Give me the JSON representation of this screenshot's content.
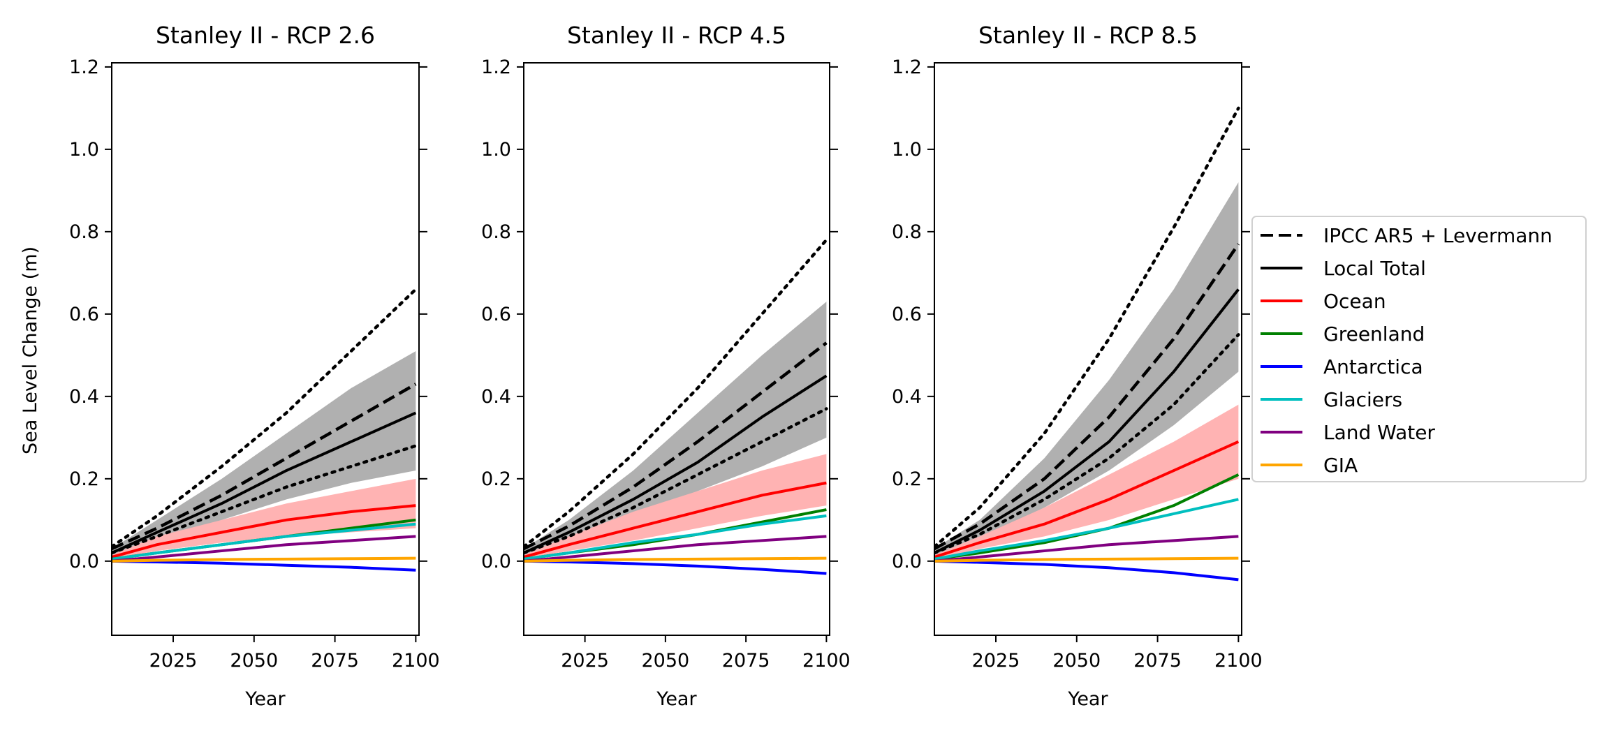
{
  "chart_data": [
    {
      "type": "line",
      "title": "Stanley II - RCP 2.6",
      "xlabel": "Year",
      "ylabel": "Sea Level Change (m)",
      "xlim": [
        2006,
        2101
      ],
      "ylim": [
        -0.18,
        1.21
      ],
      "xticks": [
        2025,
        2050,
        2075,
        2100
      ],
      "yticks": [
        0.0,
        0.2,
        0.4,
        0.6,
        0.8,
        1.0,
        1.2
      ],
      "x": [
        2006,
        2020,
        2040,
        2060,
        2080,
        2100
      ],
      "series": [
        {
          "name": "IPCC AR5 + Levermann",
          "style": "dashed",
          "color": "#000000",
          "values": [
            0.03,
            0.08,
            0.16,
            0.25,
            0.34,
            0.43
          ]
        },
        {
          "name": "Local Total",
          "style": "solid",
          "color": "#000000",
          "values": [
            0.02,
            0.07,
            0.14,
            0.22,
            0.29,
            0.36
          ]
        },
        {
          "name": "Ocean",
          "style": "solid",
          "color": "#ff0000",
          "values": [
            0.01,
            0.04,
            0.07,
            0.1,
            0.12,
            0.135
          ]
        },
        {
          "name": "Greenland",
          "style": "solid",
          "color": "#008000",
          "values": [
            0.005,
            0.02,
            0.04,
            0.06,
            0.08,
            0.1
          ]
        },
        {
          "name": "Antarctica",
          "style": "solid",
          "color": "#0000ff",
          "values": [
            0.0,
            -0.002,
            -0.005,
            -0.01,
            -0.015,
            -0.022
          ]
        },
        {
          "name": "Glaciers",
          "style": "solid",
          "color": "#00bfbf",
          "values": [
            0.005,
            0.02,
            0.04,
            0.06,
            0.075,
            0.09
          ]
        },
        {
          "name": "Land Water",
          "style": "solid",
          "color": "#800080",
          "values": [
            0.0,
            0.01,
            0.025,
            0.04,
            0.05,
            0.06
          ]
        },
        {
          "name": "GIA",
          "style": "solid",
          "color": "#ffa500",
          "values": [
            0.0,
            0.002,
            0.004,
            0.005,
            0.006,
            0.007
          ]
        },
        {
          "style": "dotted",
          "color": "#000000",
          "values": [
            0.035,
            0.11,
            0.23,
            0.36,
            0.51,
            0.66
          ]
        },
        {
          "style": "dotted",
          "color": "#000000",
          "values": [
            0.02,
            0.06,
            0.12,
            0.18,
            0.23,
            0.28
          ]
        }
      ],
      "bands": [
        {
          "color": "#b0b0b0",
          "lower": [
            0.015,
            0.05,
            0.1,
            0.15,
            0.19,
            0.22
          ],
          "upper": [
            0.03,
            0.1,
            0.2,
            0.31,
            0.42,
            0.51
          ]
        },
        {
          "color": "#ffb3b3",
          "lower": [
            0.005,
            0.025,
            0.045,
            0.06,
            0.07,
            0.08
          ],
          "upper": [
            0.015,
            0.06,
            0.1,
            0.14,
            0.17,
            0.2
          ]
        }
      ]
    },
    {
      "type": "line",
      "title": "Stanley II - RCP 4.5",
      "xlabel": "Year",
      "xlim": [
        2006,
        2101
      ],
      "ylim": [
        -0.18,
        1.21
      ],
      "xticks": [
        2025,
        2050,
        2075,
        2100
      ],
      "yticks": [
        0.0,
        0.2,
        0.4,
        0.6,
        0.8,
        1.0,
        1.2
      ],
      "x": [
        2006,
        2020,
        2040,
        2060,
        2080,
        2100
      ],
      "series": [
        {
          "name": "IPCC AR5 + Levermann",
          "style": "dashed",
          "color": "#000000",
          "values": [
            0.03,
            0.085,
            0.18,
            0.29,
            0.41,
            0.53
          ]
        },
        {
          "name": "Local Total",
          "style": "solid",
          "color": "#000000",
          "values": [
            0.02,
            0.07,
            0.15,
            0.24,
            0.35,
            0.45
          ]
        },
        {
          "name": "Ocean",
          "style": "solid",
          "color": "#ff0000",
          "values": [
            0.01,
            0.04,
            0.08,
            0.12,
            0.16,
            0.19
          ]
        },
        {
          "name": "Greenland",
          "style": "solid",
          "color": "#008000",
          "values": [
            0.005,
            0.02,
            0.04,
            0.065,
            0.095,
            0.125
          ]
        },
        {
          "name": "Antarctica",
          "style": "solid",
          "color": "#0000ff",
          "values": [
            0.0,
            -0.002,
            -0.006,
            -0.012,
            -0.02,
            -0.03
          ]
        },
        {
          "name": "Glaciers",
          "style": "solid",
          "color": "#00bfbf",
          "values": [
            0.005,
            0.02,
            0.045,
            0.065,
            0.09,
            0.11
          ]
        },
        {
          "name": "Land Water",
          "style": "solid",
          "color": "#800080",
          "values": [
            0.0,
            0.01,
            0.025,
            0.04,
            0.05,
            0.06
          ]
        },
        {
          "name": "GIA",
          "style": "solid",
          "color": "#ffa500",
          "values": [
            0.0,
            0.002,
            0.004,
            0.005,
            0.006,
            0.007
          ]
        },
        {
          "style": "dotted",
          "color": "#000000",
          "values": [
            0.035,
            0.12,
            0.26,
            0.42,
            0.6,
            0.78
          ]
        },
        {
          "style": "dotted",
          "color": "#000000",
          "values": [
            0.02,
            0.06,
            0.13,
            0.21,
            0.29,
            0.37
          ]
        }
      ],
      "bands": [
        {
          "color": "#b0b0b0",
          "lower": [
            0.015,
            0.05,
            0.11,
            0.17,
            0.23,
            0.3
          ],
          "upper": [
            0.03,
            0.1,
            0.22,
            0.36,
            0.5,
            0.63
          ]
        },
        {
          "color": "#ffb3b3",
          "lower": [
            0.005,
            0.025,
            0.05,
            0.08,
            0.11,
            0.135
          ],
          "upper": [
            0.015,
            0.06,
            0.12,
            0.17,
            0.22,
            0.26
          ]
        }
      ]
    },
    {
      "type": "line",
      "title": "Stanley II - RCP 8.5",
      "xlabel": "Year",
      "xlim": [
        2006,
        2101
      ],
      "ylim": [
        -0.18,
        1.21
      ],
      "xticks": [
        2025,
        2050,
        2075,
        2100
      ],
      "yticks": [
        0.0,
        0.2,
        0.4,
        0.6,
        0.8,
        1.0,
        1.2
      ],
      "x": [
        2006,
        2020,
        2040,
        2060,
        2080,
        2100
      ],
      "series": [
        {
          "name": "IPCC AR5 + Levermann",
          "style": "dashed",
          "color": "#000000",
          "values": [
            0.03,
            0.09,
            0.2,
            0.35,
            0.54,
            0.77
          ]
        },
        {
          "name": "Local Total",
          "style": "solid",
          "color": "#000000",
          "values": [
            0.02,
            0.075,
            0.17,
            0.29,
            0.46,
            0.66
          ]
        },
        {
          "name": "Ocean",
          "style": "solid",
          "color": "#ff0000",
          "values": [
            0.01,
            0.045,
            0.09,
            0.15,
            0.22,
            0.29
          ]
        },
        {
          "name": "Greenland",
          "style": "solid",
          "color": "#008000",
          "values": [
            0.005,
            0.02,
            0.045,
            0.08,
            0.135,
            0.21
          ]
        },
        {
          "name": "Antarctica",
          "style": "solid",
          "color": "#0000ff",
          "values": [
            0.0,
            -0.003,
            -0.008,
            -0.016,
            -0.028,
            -0.045
          ]
        },
        {
          "name": "Glaciers",
          "style": "solid",
          "color": "#00bfbf",
          "values": [
            0.005,
            0.025,
            0.05,
            0.08,
            0.115,
            0.15
          ]
        },
        {
          "name": "Land Water",
          "style": "solid",
          "color": "#800080",
          "values": [
            0.0,
            0.01,
            0.025,
            0.04,
            0.05,
            0.06
          ]
        },
        {
          "name": "GIA",
          "style": "solid",
          "color": "#ffa500",
          "values": [
            0.0,
            0.002,
            0.004,
            0.005,
            0.006,
            0.007
          ]
        },
        {
          "style": "dotted",
          "color": "#000000",
          "values": [
            0.035,
            0.13,
            0.31,
            0.54,
            0.81,
            1.1
          ]
        },
        {
          "style": "dotted",
          "color": "#000000",
          "values": [
            0.02,
            0.065,
            0.15,
            0.25,
            0.38,
            0.55
          ]
        }
      ],
      "bands": [
        {
          "color": "#b0b0b0",
          "lower": [
            0.015,
            0.055,
            0.13,
            0.22,
            0.33,
            0.46
          ],
          "upper": [
            0.03,
            0.1,
            0.25,
            0.44,
            0.66,
            0.92
          ]
        },
        {
          "color": "#ffb3b3",
          "lower": [
            0.005,
            0.03,
            0.06,
            0.1,
            0.15,
            0.2
          ],
          "upper": [
            0.015,
            0.06,
            0.13,
            0.21,
            0.29,
            0.38
          ]
        }
      ]
    }
  ],
  "legend": {
    "placement": "right",
    "entries": [
      {
        "label": "IPCC AR5 + Levermann",
        "color": "#000000",
        "style": "dashed"
      },
      {
        "label": "Local Total",
        "color": "#000000",
        "style": "solid"
      },
      {
        "label": "Ocean",
        "color": "#ff0000",
        "style": "solid"
      },
      {
        "label": "Greenland",
        "color": "#008000",
        "style": "solid"
      },
      {
        "label": "Antarctica",
        "color": "#0000ff",
        "style": "solid"
      },
      {
        "label": "Glaciers",
        "color": "#00bfbf",
        "style": "solid"
      },
      {
        "label": "Land Water",
        "color": "#800080",
        "style": "solid"
      },
      {
        "label": "GIA",
        "color": "#ffa500",
        "style": "solid"
      }
    ]
  }
}
